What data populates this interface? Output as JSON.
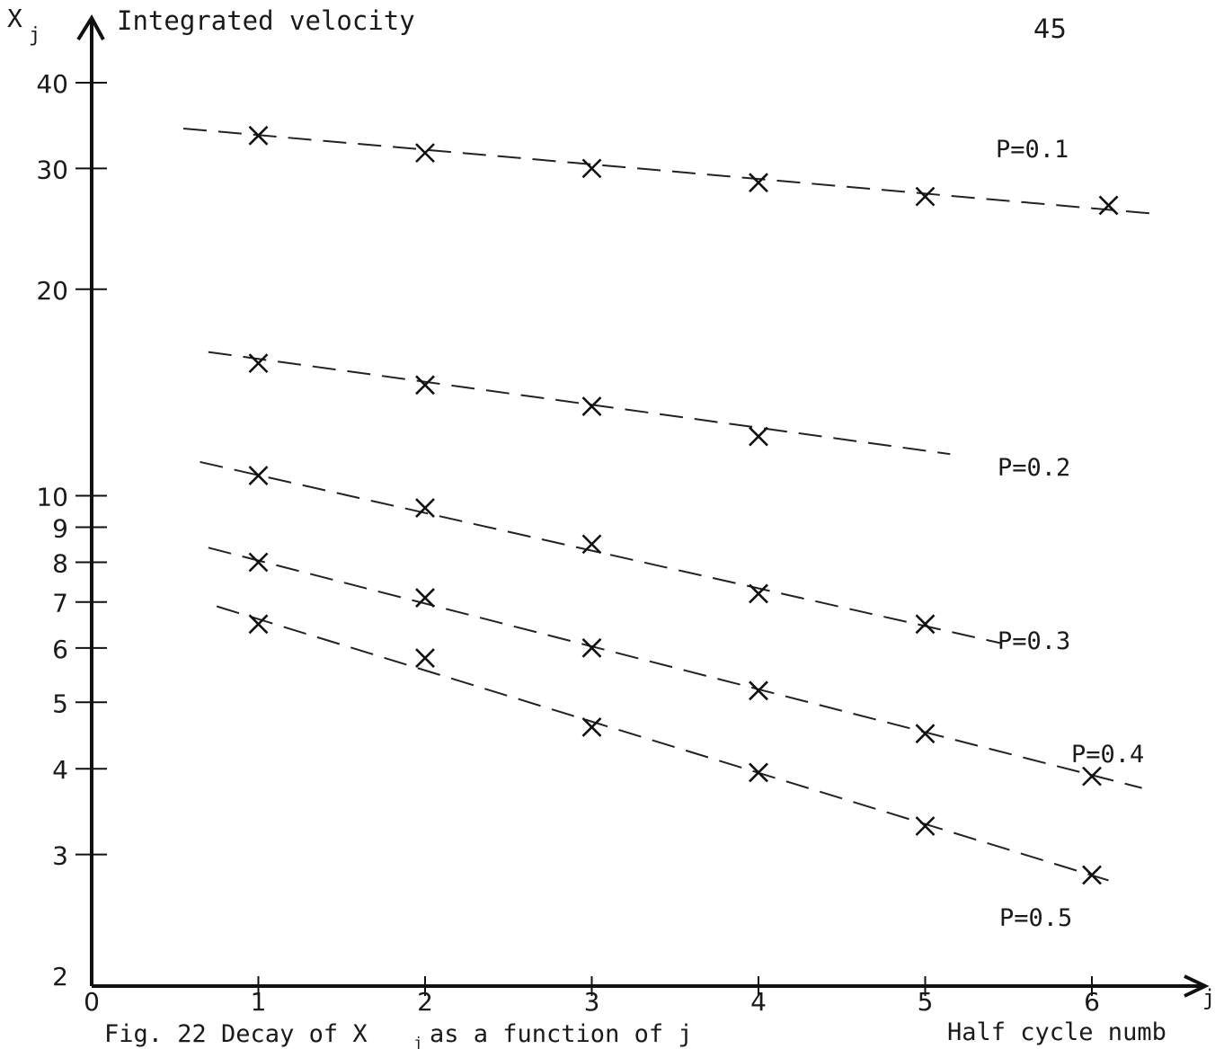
{
  "page_number": "45",
  "chart_data": {
    "type": "scatter",
    "title": "Decay of X_j as a function of j",
    "ylabel": "X_j",
    "ylabel_subtitle": "Integrated velocity",
    "ylabel_main": "X",
    "ylabel_sub": "j",
    "xlabel": "Half cycle numb",
    "xlabel_symbol": "j",
    "caption": "Fig. 22  Decay of X  as a function of j",
    "caption_parts": {
      "prefix": "Fig. 22  Decay of X",
      "sub": "j",
      "suffix": " as a function of j"
    },
    "y_scale": "log",
    "ylim": [
      2,
      40
    ],
    "xlim": [
      0,
      6.4
    ],
    "x_ticks": [
      0,
      1,
      2,
      3,
      4,
      5,
      6
    ],
    "x_tick_labels": [
      "0",
      "1",
      "2",
      "3",
      "4",
      "5",
      "6"
    ],
    "y_ticks": [
      2,
      3,
      4,
      5,
      6,
      7,
      8,
      9,
      10,
      20,
      30,
      40
    ],
    "y_tick_labels": [
      "2",
      "3",
      "4",
      "5",
      "6",
      "7",
      "8",
      "9",
      "10",
      "20",
      "30",
      "40"
    ],
    "grid": false,
    "legend": "none (series labelled at line ends)",
    "series": [
      {
        "name": "P=0.1",
        "x": [
          1,
          2,
          3,
          4,
          5,
          6.1
        ],
        "values": [
          33.5,
          31.6,
          30.0,
          28.6,
          27.3,
          26.5
        ],
        "fit": {
          "x": [
            0.55,
            6.35
          ],
          "y": [
            34.3,
            25.8
          ]
        }
      },
      {
        "name": "P=0.2",
        "x": [
          1,
          2,
          3,
          4
        ],
        "values": [
          15.6,
          14.5,
          13.5,
          12.2
        ],
        "fit": {
          "x": [
            0.7,
            5.15
          ],
          "y": [
            16.2,
            11.5
          ]
        }
      },
      {
        "name": "P=0.3",
        "x": [
          1,
          2,
          3,
          4,
          5
        ],
        "values": [
          10.7,
          9.6,
          8.5,
          7.2,
          6.5
        ],
        "fit": {
          "x": [
            0.65,
            5.45
          ],
          "y": [
            11.2,
            6.1
          ]
        }
      },
      {
        "name": "P=0.4",
        "x": [
          1,
          2,
          3,
          4,
          5,
          6
        ],
        "values": [
          8.0,
          7.1,
          6.0,
          5.2,
          4.5,
          3.9
        ],
        "fit": {
          "x": [
            0.7,
            6.3
          ],
          "y": [
            8.4,
            3.75
          ]
        }
      },
      {
        "name": "P=0.5",
        "x": [
          1,
          2,
          3,
          4,
          5,
          6
        ],
        "values": [
          6.5,
          5.8,
          4.6,
          3.95,
          3.3,
          2.8
        ],
        "fit": {
          "x": [
            0.75,
            6.1
          ],
          "y": [
            6.9,
            2.75
          ]
        }
      }
    ]
  }
}
